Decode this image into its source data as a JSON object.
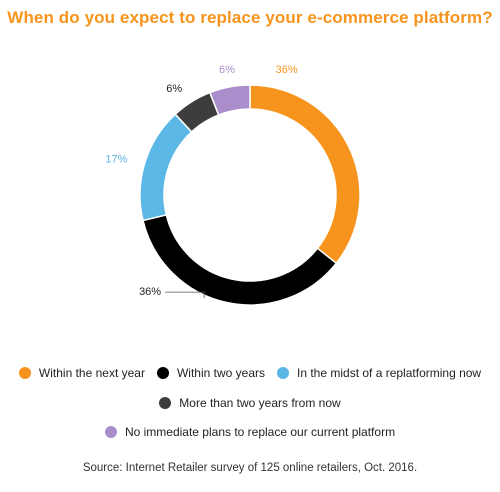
{
  "chart_data": {
    "type": "pie",
    "title": "When do you expect to replace your e-commerce platform?",
    "subtitle": "",
    "slices": [
      {
        "label": "Within the next year",
        "value": 36,
        "display": "36%",
        "color": "#f7941d"
      },
      {
        "label": "Within two years",
        "value": 36,
        "display": "36%",
        "color": "#000000"
      },
      {
        "label": "In the midst of a replatforming now",
        "value": 17,
        "display": "17%",
        "color": "#5bb8e6"
      },
      {
        "label": "More than two years from now",
        "value": 6,
        "display": "6%",
        "color": "#3d3d3d"
      },
      {
        "label": "No immediate plans to replace our current platform",
        "value": 6,
        "display": "6%",
        "color": "#a98ecb"
      }
    ],
    "legend_position": "bottom",
    "source": "Source: Internet Retailer survey of 125 online retailers, Oct. 2016."
  }
}
